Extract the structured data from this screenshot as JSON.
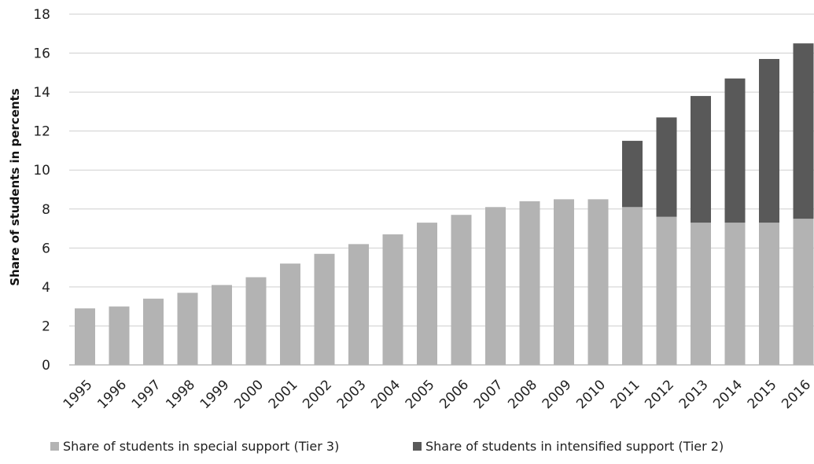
{
  "chart_data": {
    "type": "bar",
    "stacked": true,
    "title": "",
    "xlabel": "",
    "ylabel": "Share of students in percents",
    "ylim": [
      0,
      18
    ],
    "y_ticks": [
      0,
      2,
      4,
      6,
      8,
      10,
      12,
      14,
      16,
      18
    ],
    "grid": "horizontal",
    "legend_position": "bottom",
    "categories": [
      "1995",
      "1996",
      "1997",
      "1998",
      "1999",
      "2000",
      "2001",
      "2002",
      "2003",
      "2004",
      "2005",
      "2006",
      "2007",
      "2008",
      "2009",
      "2010",
      "2011",
      "2012",
      "2013",
      "2014",
      "2015",
      "2016"
    ],
    "series": [
      {
        "name": "Share of students in special support (Tier 3)",
        "color": "#b3b3b3",
        "values": [
          2.9,
          3.0,
          3.4,
          3.7,
          4.1,
          4.5,
          5.2,
          5.7,
          6.2,
          6.7,
          7.3,
          7.7,
          8.1,
          8.4,
          8.5,
          8.5,
          8.1,
          7.6,
          7.3,
          7.3,
          7.3,
          7.5
        ]
      },
      {
        "name": "Share of students in intensified support (Tier 2)",
        "color": "#595959",
        "values": [
          0,
          0,
          0,
          0,
          0,
          0,
          0,
          0,
          0,
          0,
          0,
          0,
          0,
          0,
          0,
          0,
          3.4,
          5.1,
          6.5,
          7.4,
          8.4,
          9.0
        ]
      }
    ]
  }
}
